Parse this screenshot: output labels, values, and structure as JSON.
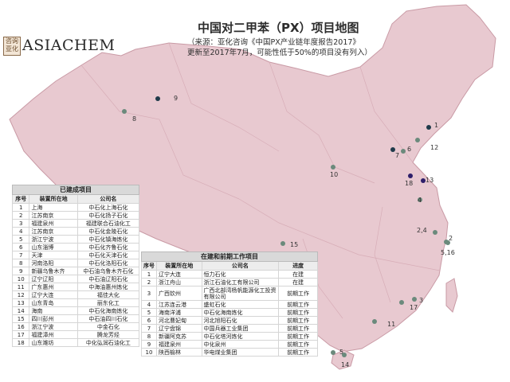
{
  "logo": {
    "seal": "咨询 亚化",
    "text": "ASIACHEM"
  },
  "header": {
    "title": "中国对二甲苯（PX）项目地图",
    "source_line": "（来源：亚化咨询《中国PX产业链年度报告2017》",
    "update_line": "更新至2017年7月，可能性低于50%的项目没有列入）"
  },
  "colors": {
    "land": "#e8c9d0",
    "border": "#c99aa5",
    "sea": "#ffffff",
    "marker_dark": "#1f3a4a",
    "marker_gray": "#6b8a7c",
    "marker_purple": "#2e1f6a",
    "header_fill": "#d9d9d9"
  },
  "map_labels": [
    {
      "id": "1",
      "text": "1"
    },
    {
      "id": "2",
      "text": "2"
    },
    {
      "id": "3",
      "text": "3"
    },
    {
      "id": "4",
      "text": "4"
    },
    {
      "id": "5",
      "text": "5"
    },
    {
      "id": "6",
      "text": "6"
    },
    {
      "id": "7",
      "text": "7"
    },
    {
      "id": "8",
      "text": "8"
    },
    {
      "id": "9",
      "text": "9"
    },
    {
      "id": "10",
      "text": "10"
    },
    {
      "id": "11",
      "text": "11"
    },
    {
      "id": "12",
      "text": "12"
    },
    {
      "id": "13",
      "text": "13"
    },
    {
      "id": "14",
      "text": "14"
    },
    {
      "id": "15",
      "text": "15"
    },
    {
      "id": "16",
      "text": "16"
    },
    {
      "id": "17",
      "text": "17"
    },
    {
      "id": "18",
      "text": "18"
    },
    {
      "id": "2,4",
      "text": "2,4"
    },
    {
      "id": "5,16",
      "text": "5,16"
    }
  ],
  "built_table": {
    "title": "已建成项目",
    "headers": [
      "序号",
      "装置所在地",
      "公司名"
    ],
    "rows": [
      [
        "1",
        "上海",
        "中石化上海石化"
      ],
      [
        "2",
        "江苏南京",
        "中石化扬子石化"
      ],
      [
        "3",
        "福建泉州",
        "福建联合石油化工"
      ],
      [
        "4",
        "江苏南京",
        "中石化金陵石化"
      ],
      [
        "5",
        "浙江宁波",
        "中石化镇海炼化"
      ],
      [
        "6",
        "山东淄博",
        "中石化齐鲁石化"
      ],
      [
        "7",
        "天津",
        "中石化天津石化"
      ],
      [
        "8",
        "河南洛阳",
        "中石化洛阳石化"
      ],
      [
        "9",
        "新疆乌鲁木齐",
        "中石油乌鲁木齐石化"
      ],
      [
        "10",
        "辽宁辽阳",
        "中石油辽阳石化"
      ],
      [
        "11",
        "广东惠州",
        "中海油惠州炼化"
      ],
      [
        "12",
        "辽宁大连",
        "福佳大化"
      ],
      [
        "13",
        "山东青岛",
        "丽东化工"
      ],
      [
        "14",
        "海南",
        "中石化海南炼化"
      ],
      [
        "15",
        "四川彭州",
        "中石油四川石化"
      ],
      [
        "16",
        "浙江宁波",
        "中金石化"
      ],
      [
        "17",
        "福建漳州",
        "腾龙芳烃"
      ],
      [
        "18",
        "山东潍坊",
        "中化弘润石油化工"
      ]
    ]
  },
  "plan_table": {
    "title": "在建和前期工作项目",
    "headers": [
      "序号",
      "装置所在地",
      "公司名",
      "进度"
    ],
    "rows": [
      [
        "1",
        "辽宁大连",
        "恒力石化",
        "在建"
      ],
      [
        "2",
        "浙江舟山",
        "浙江石油化工有限公司",
        "在建"
      ],
      [
        "3",
        "广西钦州",
        "广西北部湾杨帆能源化工投资有限公司",
        "前期工作"
      ],
      [
        "4",
        "江苏连云港",
        "盛虹石化",
        "前期工作"
      ],
      [
        "5",
        "海南洋浦",
        "中石化海南炼化",
        "前期工作"
      ],
      [
        "6",
        "河北曹妃甸",
        "河北旭阳石化",
        "前期工作"
      ],
      [
        "7",
        "辽宁盘锦",
        "中国兵器工业集团",
        "前期工作"
      ],
      [
        "8",
        "新疆阿克苏",
        "中石化塔河炼化",
        "前期工作"
      ],
      [
        "9",
        "福建泉州",
        "中化泉州",
        "前期工作"
      ],
      [
        "10",
        "陕西榆林",
        "华电煤业集团",
        "前期工作"
      ]
    ]
  }
}
